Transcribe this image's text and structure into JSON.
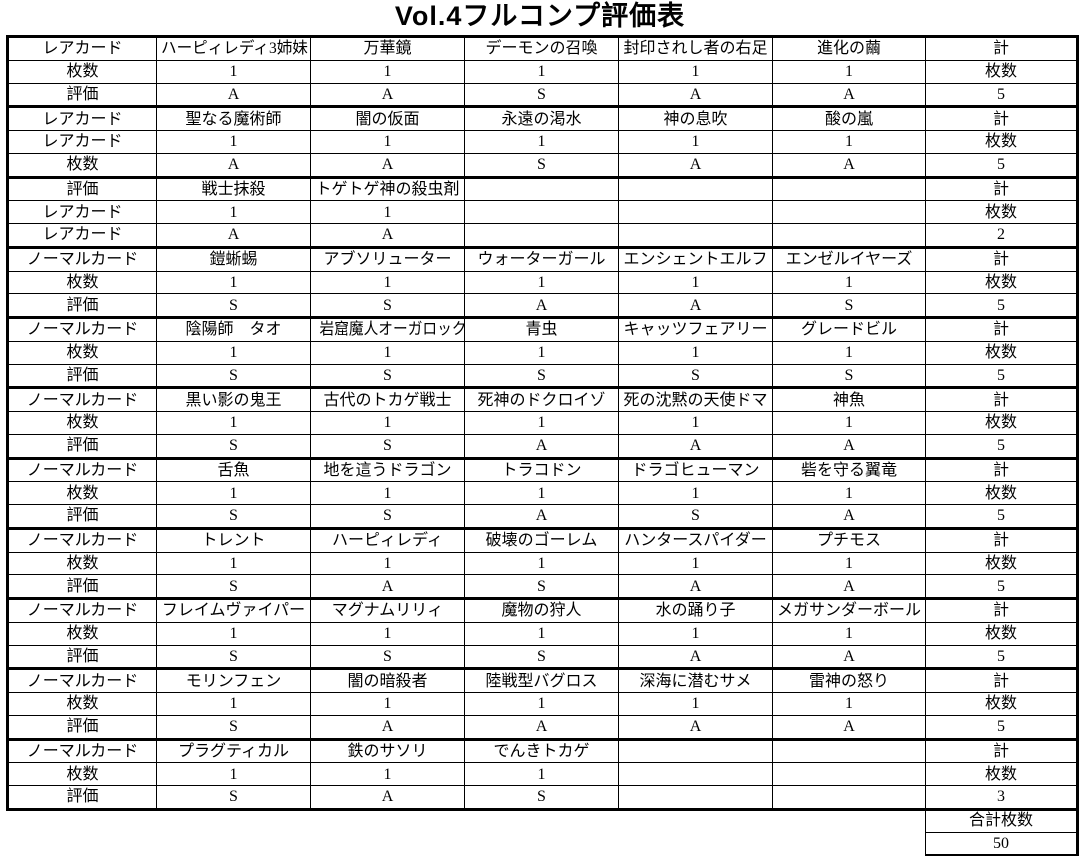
{
  "title": "Vol.4フルコンプ評価表",
  "table": {
    "groups": [
      {
        "row_labels": [
          "レアカード",
          "枚数",
          "評価"
        ],
        "cards": [
          "ハーピィレディ3姉妹",
          "万華鏡",
          "デーモンの召喚",
          "封印されし者の右足",
          "進化の繭"
        ],
        "counts": [
          "1",
          "1",
          "1",
          "1",
          "1"
        ],
        "ratings": [
          "A",
          "A",
          "S",
          "A",
          "A"
        ],
        "total_label": "計",
        "count_label": "枚数",
        "total": "5"
      },
      {
        "row_labels": [
          "レアカード",
          "レアカード",
          "枚数"
        ],
        "cards": [
          "聖なる魔術師",
          "闇の仮面",
          "永遠の渇水",
          "神の息吹",
          "酸の嵐"
        ],
        "counts": [
          "1",
          "1",
          "1",
          "1",
          "1"
        ],
        "ratings": [
          "A",
          "A",
          "S",
          "A",
          "A"
        ],
        "total_label": "計",
        "count_label": "枚数",
        "total": "5"
      },
      {
        "row_labels": [
          "評価",
          "レアカード",
          "レアカード"
        ],
        "cards": [
          "戦士抹殺",
          "トゲトゲ神の殺虫剤",
          "",
          "",
          ""
        ],
        "counts": [
          "1",
          "1",
          "",
          "",
          ""
        ],
        "ratings": [
          "A",
          "A",
          "",
          "",
          ""
        ],
        "total_label": "計",
        "count_label": "枚数",
        "total": "2"
      },
      {
        "row_labels": [
          "ノーマルカード",
          "枚数",
          "評価"
        ],
        "cards": [
          "鎧蜥蜴",
          "アブソリューター",
          "ウォーターガール",
          "エンシェントエルフ",
          "エンゼルイヤーズ"
        ],
        "counts": [
          "1",
          "1",
          "1",
          "1",
          "1"
        ],
        "ratings": [
          "S",
          "S",
          "A",
          "A",
          "S"
        ],
        "total_label": "計",
        "count_label": "枚数",
        "total": "5"
      },
      {
        "row_labels": [
          "ノーマルカード",
          "枚数",
          "評価"
        ],
        "cards": [
          "陰陽師　タオ",
          "岩窟魔人オーガロック",
          "青虫",
          "キャッツフェアリー",
          "グレードビル"
        ],
        "counts": [
          "1",
          "1",
          "1",
          "1",
          "1"
        ],
        "ratings": [
          "S",
          "S",
          "S",
          "S",
          "S"
        ],
        "total_label": "計",
        "count_label": "枚数",
        "total": "5"
      },
      {
        "row_labels": [
          "ノーマルカード",
          "枚数",
          "評価"
        ],
        "cards": [
          "黒い影の鬼王",
          "古代のトカゲ戦士",
          "死神のドクロイゾ",
          "死の沈黙の天使ドマ",
          "神魚"
        ],
        "counts": [
          "1",
          "1",
          "1",
          "1",
          "1"
        ],
        "ratings": [
          "S",
          "S",
          "A",
          "A",
          "A"
        ],
        "total_label": "計",
        "count_label": "枚数",
        "total": "5"
      },
      {
        "row_labels": [
          "ノーマルカード",
          "枚数",
          "評価"
        ],
        "cards": [
          "舌魚",
          "地を這うドラゴン",
          "トラコドン",
          "ドラゴヒューマン",
          "砦を守る翼竜"
        ],
        "counts": [
          "1",
          "1",
          "1",
          "1",
          "1"
        ],
        "ratings": [
          "S",
          "S",
          "A",
          "S",
          "A"
        ],
        "total_label": "計",
        "count_label": "枚数",
        "total": "5"
      },
      {
        "row_labels": [
          "ノーマルカード",
          "枚数",
          "評価"
        ],
        "cards": [
          "トレント",
          "ハーピィレディ",
          "破壊のゴーレム",
          "ハンタースパイダー",
          "プチモス"
        ],
        "counts": [
          "1",
          "1",
          "1",
          "1",
          "1"
        ],
        "ratings": [
          "S",
          "A",
          "S",
          "A",
          "A"
        ],
        "total_label": "計",
        "count_label": "枚数",
        "total": "5"
      },
      {
        "row_labels": [
          "ノーマルカード",
          "枚数",
          "評価"
        ],
        "cards": [
          "フレイムヴァイパー",
          "マグナムリリィ",
          "魔物の狩人",
          "水の踊り子",
          "メガサンダーボール"
        ],
        "counts": [
          "1",
          "1",
          "1",
          "1",
          "1"
        ],
        "ratings": [
          "S",
          "S",
          "S",
          "A",
          "A"
        ],
        "total_label": "計",
        "count_label": "枚数",
        "total": "5"
      },
      {
        "row_labels": [
          "ノーマルカード",
          "枚数",
          "評価"
        ],
        "cards": [
          "モリンフェン",
          "闇の暗殺者",
          "陸戦型バグロス",
          "深海に潜むサメ",
          "雷神の怒り"
        ],
        "counts": [
          "1",
          "1",
          "1",
          "1",
          "1"
        ],
        "ratings": [
          "S",
          "A",
          "A",
          "A",
          "A"
        ],
        "total_label": "計",
        "count_label": "枚数",
        "total": "5"
      },
      {
        "row_labels": [
          "ノーマルカード",
          "枚数",
          "評価"
        ],
        "cards": [
          "プラグティカル",
          "鉄のサソリ",
          "でんきトカゲ",
          "",
          ""
        ],
        "counts": [
          "1",
          "1",
          "1",
          "",
          ""
        ],
        "ratings": [
          "S",
          "A",
          "S",
          "",
          ""
        ],
        "total_label": "計",
        "count_label": "枚数",
        "total": "3"
      }
    ],
    "footer": {
      "grand_total_label": "合計枚数",
      "grand_total_value": "50"
    }
  }
}
